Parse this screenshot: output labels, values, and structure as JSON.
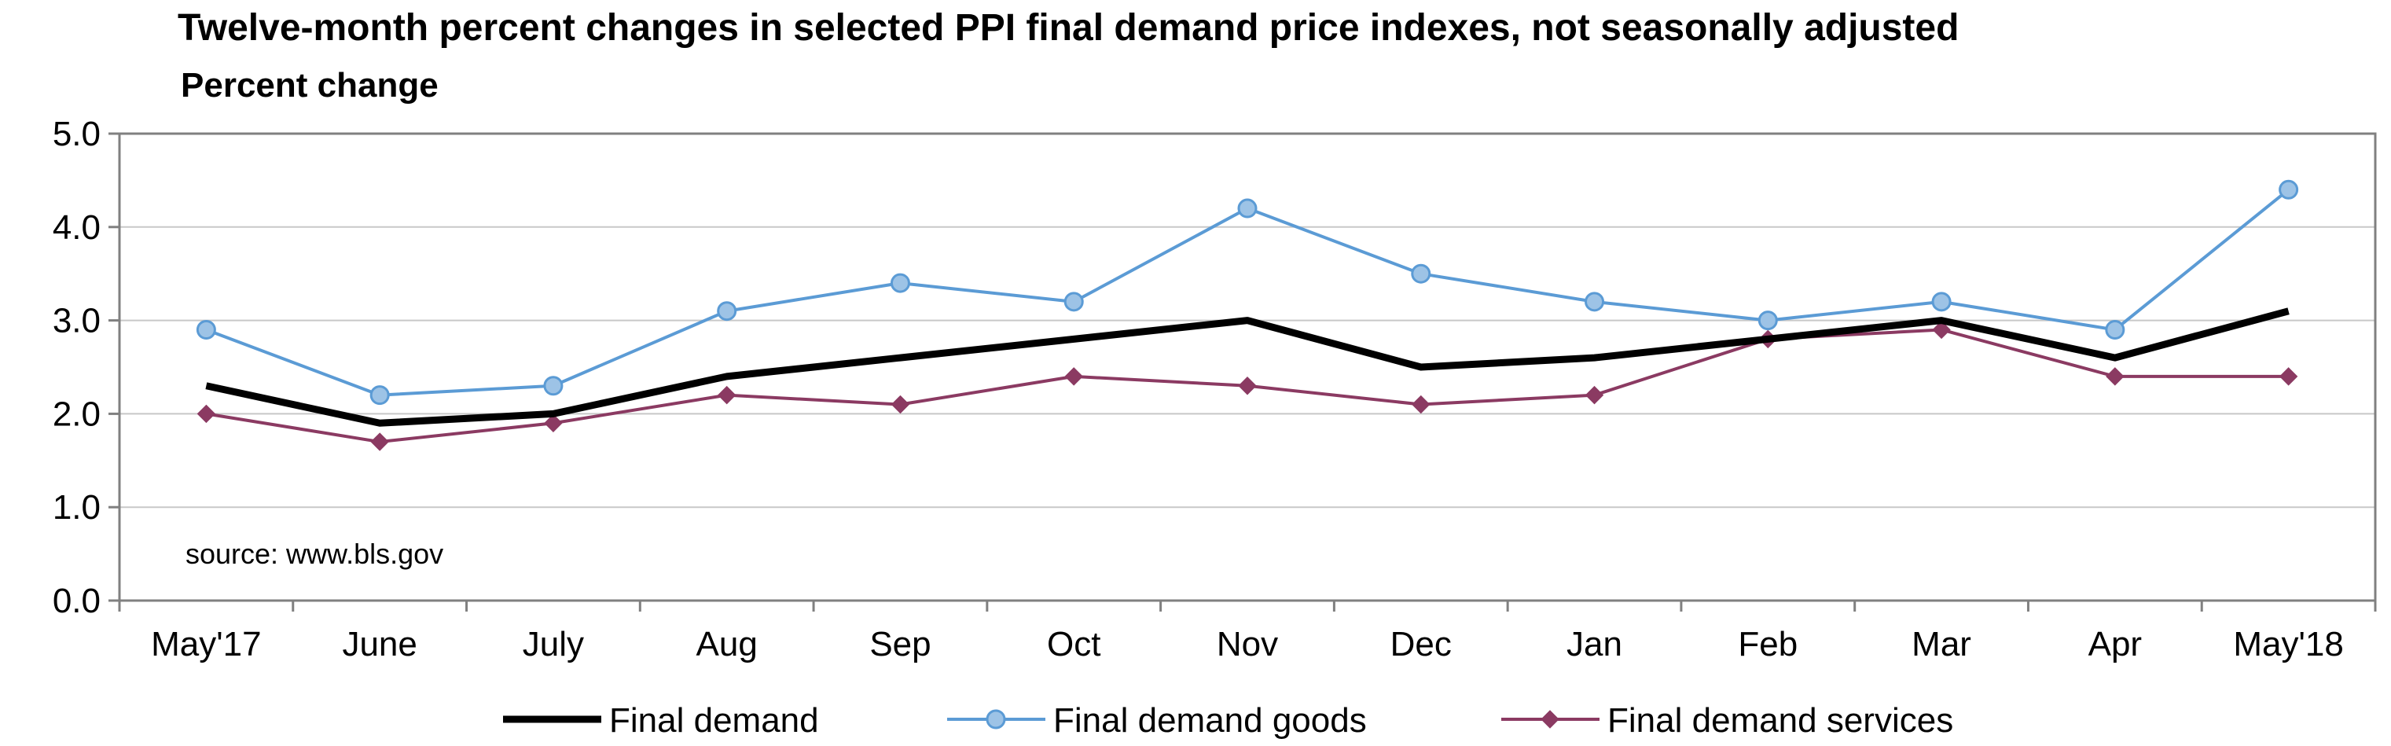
{
  "chart_data": {
    "type": "line",
    "title": "Twelve-month percent changes in selected PPI final demand price indexes, not seasonally adjusted",
    "ylabel": "Percent change",
    "xlabel": "",
    "categories": [
      "May'17",
      "June",
      "July",
      "Aug",
      "Sep",
      "Oct",
      "Nov",
      "Dec",
      "Jan",
      "Feb",
      "Mar",
      "Apr",
      "May'18"
    ],
    "ylim": [
      0,
      5
    ],
    "yticks": [
      "0.0",
      "1.0",
      "2.0",
      "3.0",
      "4.0",
      "5.0"
    ],
    "grid": true,
    "legend_position": "bottom",
    "annotation": "source: www.bls.gov",
    "series": [
      {
        "name": "Final demand",
        "color": "#000000",
        "marker": "none",
        "values": [
          2.3,
          1.9,
          2.0,
          2.4,
          2.6,
          2.8,
          3.0,
          2.5,
          2.6,
          2.8,
          3.0,
          2.6,
          3.1
        ]
      },
      {
        "name": "Final demand goods",
        "color": "#5b9bd5",
        "marker_fill": "#9dc3e6",
        "marker": "circle",
        "values": [
          2.9,
          2.2,
          2.3,
          3.1,
          3.4,
          3.2,
          4.2,
          3.5,
          3.2,
          3.0,
          3.2,
          2.9,
          4.4
        ]
      },
      {
        "name": "Final demand services",
        "color": "#8b3a62",
        "marker": "diamond",
        "values": [
          2.0,
          1.7,
          1.9,
          2.2,
          2.1,
          2.4,
          2.3,
          2.1,
          2.2,
          2.8,
          2.9,
          2.4,
          2.4
        ]
      }
    ]
  }
}
